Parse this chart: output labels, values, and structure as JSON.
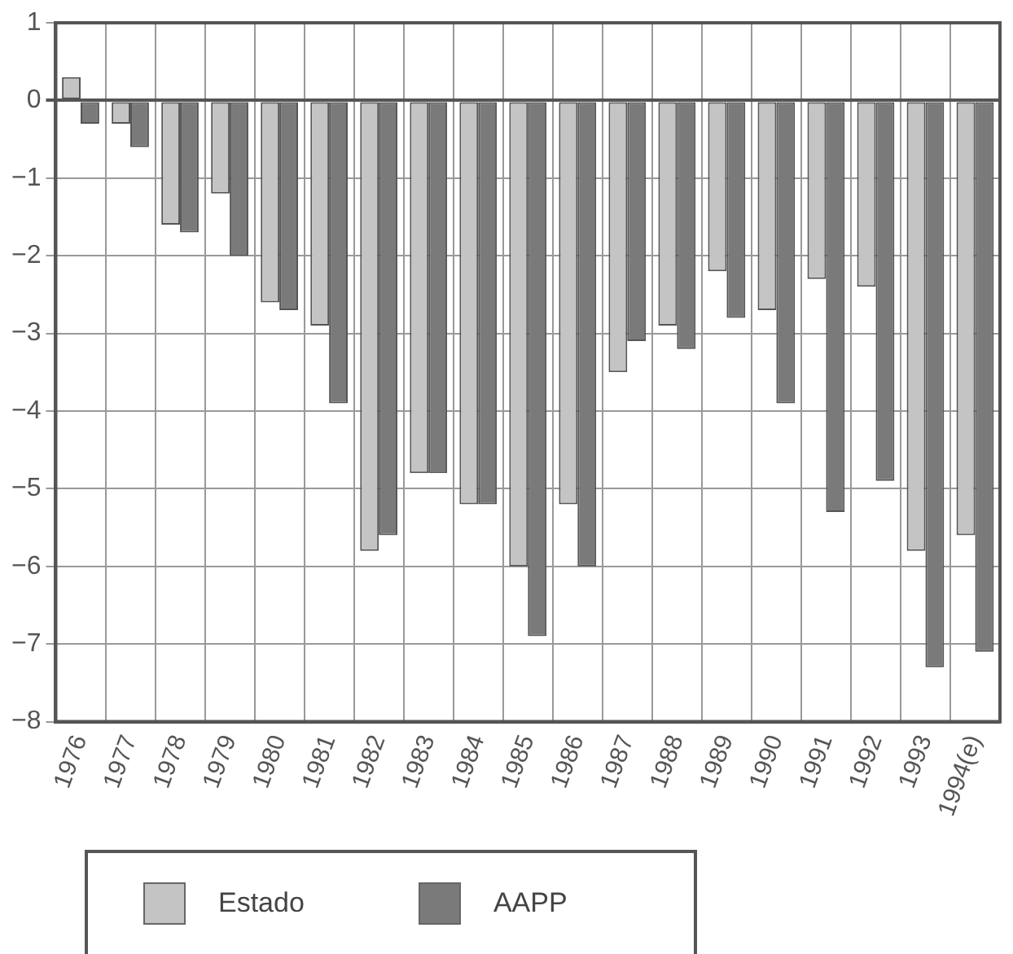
{
  "chart_data": {
    "type": "bar",
    "categories": [
      "1976",
      "1977",
      "1978",
      "1979",
      "1980",
      "1981",
      "1982",
      "1983",
      "1984",
      "1985",
      "1986",
      "1987",
      "1988",
      "1989",
      "1990",
      "1991",
      "1992",
      "1993",
      "1994(e)"
    ],
    "series": [
      {
        "name": "Estado",
        "color": "#c4c4c4",
        "values": [
          0.3,
          -0.3,
          -1.6,
          -1.2,
          -2.6,
          -2.9,
          -5.8,
          -4.8,
          -5.2,
          -6.0,
          -5.2,
          -3.5,
          -2.9,
          -2.2,
          -2.7,
          -2.3,
          -2.4,
          -5.8,
          -5.6
        ]
      },
      {
        "name": "AAPP",
        "color": "#7a7a7a",
        "values": [
          -0.3,
          -0.6,
          -1.7,
          -2.0,
          -2.7,
          -3.9,
          -5.6,
          -4.8,
          -5.2,
          -6.9,
          -6.0,
          -3.1,
          -3.2,
          -2.8,
          -3.9,
          -5.3,
          -4.9,
          -7.3,
          -7.1
        ]
      }
    ],
    "ylim": [
      -8,
      1
    ],
    "yticks": [
      -8,
      -7,
      -6,
      -5,
      -4,
      -3,
      -2,
      -1,
      0,
      1
    ],
    "grid": true,
    "legend": "bottom left"
  }
}
